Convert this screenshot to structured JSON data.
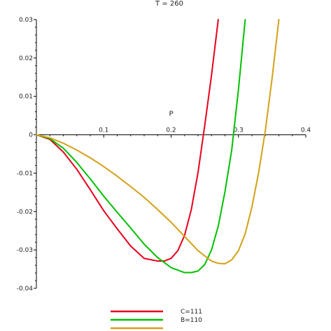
{
  "chart_data": {
    "type": "line",
    "title": "T = 260",
    "xlabel": "P",
    "ylabel": "",
    "xlim": [
      0,
      0.4
    ],
    "ylim": [
      -0.04,
      0.03
    ],
    "x_ticks": [
      "0",
      "0.1",
      "0.2",
      "0.3",
      "0.4"
    ],
    "y_ticks": [
      "0.03",
      "0.02",
      "0.01",
      "0",
      "-0.01",
      "-0.02",
      "-0.03",
      "-0.04"
    ],
    "series": [
      {
        "name": "C=111",
        "color": "#e8001c",
        "x": [
          0,
          0.02,
          0.04,
          0.06,
          0.08,
          0.1,
          0.12,
          0.14,
          0.16,
          0.18,
          0.19,
          0.2,
          0.21,
          0.22,
          0.23,
          0.24,
          0.25,
          0.26,
          0.27
        ],
        "y": [
          0,
          -0.0012,
          -0.0045,
          -0.009,
          -0.0143,
          -0.0198,
          -0.0245,
          -0.029,
          -0.0322,
          -0.0329,
          -0.0329,
          -0.0322,
          -0.0302,
          -0.0262,
          -0.0195,
          -0.0098,
          0.0025,
          0.0155,
          0.03
        ]
      },
      {
        "name": "B=110",
        "color": "#00c000",
        "x": [
          0,
          0.02,
          0.04,
          0.06,
          0.08,
          0.1,
          0.12,
          0.14,
          0.16,
          0.18,
          0.2,
          0.22,
          0.23,
          0.24,
          0.25,
          0.26,
          0.27,
          0.28,
          0.29,
          0.3,
          0.31
        ],
        "y": [
          0,
          -0.001,
          -0.0035,
          -0.0072,
          -0.0115,
          -0.016,
          -0.0202,
          -0.0243,
          -0.0285,
          -0.032,
          -0.0346,
          -0.0359,
          -0.0359,
          -0.0355,
          -0.0338,
          -0.03,
          -0.0238,
          -0.0148,
          -0.004,
          0.0118,
          0.03
        ]
      },
      {
        "name": "",
        "color": "#d4a017",
        "x": [
          0,
          0.02,
          0.04,
          0.06,
          0.08,
          0.1,
          0.12,
          0.14,
          0.16,
          0.18,
          0.2,
          0.22,
          0.24,
          0.26,
          0.27,
          0.28,
          0.29,
          0.3,
          0.31,
          0.32,
          0.33,
          0.34,
          0.35,
          0.36
        ],
        "y": [
          0,
          -0.0008,
          -0.0022,
          -0.004,
          -0.006,
          -0.0083,
          -0.0108,
          -0.0135,
          -0.0163,
          -0.0195,
          -0.0228,
          -0.0265,
          -0.0302,
          -0.0329,
          -0.0335,
          -0.0336,
          -0.0326,
          -0.0302,
          -0.0258,
          -0.0188,
          -0.0098,
          0.0012,
          0.0148,
          0.03
        ]
      }
    ],
    "legend_position": "bottom"
  }
}
